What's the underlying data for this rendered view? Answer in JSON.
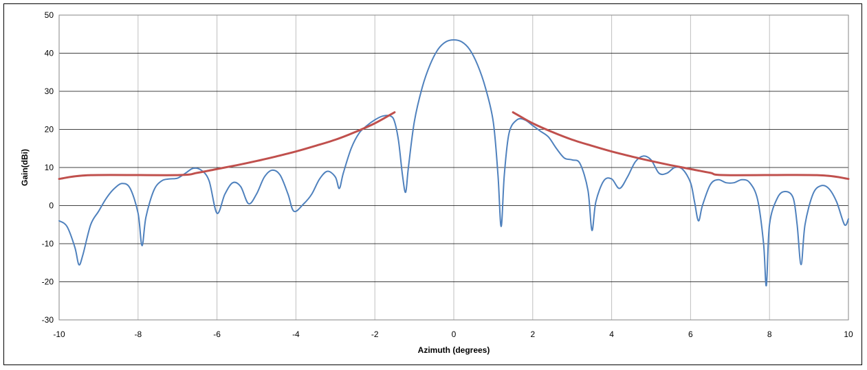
{
  "chart_data": {
    "type": "line",
    "title": "",
    "xlabel": "Azimuth (degrees)",
    "ylabel": "Gain(dBi)",
    "xlim": [
      -10,
      10
    ],
    "ylim": [
      -30,
      50
    ],
    "x_ticks": [
      -10,
      -8,
      -6,
      -4,
      -2,
      0,
      2,
      4,
      6,
      8,
      10
    ],
    "y_ticks": [
      -30,
      -20,
      -10,
      0,
      10,
      20,
      30,
      40,
      50
    ],
    "grid": true,
    "legend": "none",
    "series": [
      {
        "color": "#4F81BD",
        "points": [
          [
            -10,
            -4
          ],
          [
            -9.8,
            -5.5
          ],
          [
            -9.6,
            -11
          ],
          [
            -9.5,
            -15.5
          ],
          [
            -9.4,
            -13
          ],
          [
            -9.2,
            -5
          ],
          [
            -9.0,
            -1.5
          ],
          [
            -8.8,
            2
          ],
          [
            -8.6,
            4.5
          ],
          [
            -8.4,
            5.8
          ],
          [
            -8.2,
            4.5
          ],
          [
            -8.0,
            -2
          ],
          [
            -7.9,
            -10.5
          ],
          [
            -7.8,
            -3
          ],
          [
            -7.6,
            4
          ],
          [
            -7.4,
            6.5
          ],
          [
            -7.2,
            7
          ],
          [
            -7.0,
            7.2
          ],
          [
            -6.8,
            8.5
          ],
          [
            -6.6,
            9.8
          ],
          [
            -6.4,
            9.3
          ],
          [
            -6.2,
            6.5
          ],
          [
            -6.0,
            -2
          ],
          [
            -5.8,
            3
          ],
          [
            -5.6,
            6
          ],
          [
            -5.4,
            5
          ],
          [
            -5.2,
            0.5
          ],
          [
            -5.0,
            3
          ],
          [
            -4.8,
            7.5
          ],
          [
            -4.6,
            9.3
          ],
          [
            -4.4,
            8
          ],
          [
            -4.2,
            3
          ],
          [
            -4.05,
            -1.5
          ],
          [
            -3.8,
            0.5
          ],
          [
            -3.6,
            3
          ],
          [
            -3.4,
            7
          ],
          [
            -3.2,
            9
          ],
          [
            -3.0,
            7.5
          ],
          [
            -2.9,
            4.5
          ],
          [
            -2.8,
            8.5
          ],
          [
            -2.6,
            15
          ],
          [
            -2.4,
            19
          ],
          [
            -2.2,
            21
          ],
          [
            -2.0,
            22.5
          ],
          [
            -1.8,
            23.5
          ],
          [
            -1.6,
            23.5
          ],
          [
            -1.5,
            22
          ],
          [
            -1.4,
            17
          ],
          [
            -1.3,
            8
          ],
          [
            -1.22,
            3.5
          ],
          [
            -1.15,
            10
          ],
          [
            -1.0,
            22
          ],
          [
            -0.8,
            31
          ],
          [
            -0.6,
            37
          ],
          [
            -0.4,
            41
          ],
          [
            -0.2,
            43
          ],
          [
            0,
            43.5
          ],
          [
            0.2,
            43
          ],
          [
            0.4,
            41
          ],
          [
            0.6,
            37
          ],
          [
            0.8,
            31
          ],
          [
            1.0,
            22
          ],
          [
            1.12,
            8
          ],
          [
            1.2,
            -5.5
          ],
          [
            1.28,
            8
          ],
          [
            1.4,
            19
          ],
          [
            1.6,
            22.5
          ],
          [
            1.8,
            22.5
          ],
          [
            2.0,
            21
          ],
          [
            2.2,
            19.5
          ],
          [
            2.4,
            18
          ],
          [
            2.6,
            15
          ],
          [
            2.8,
            12.5
          ],
          [
            3.0,
            12
          ],
          [
            3.2,
            11
          ],
          [
            3.4,
            4
          ],
          [
            3.5,
            -6.5
          ],
          [
            3.6,
            1
          ],
          [
            3.8,
            6.5
          ],
          [
            4.0,
            7
          ],
          [
            4.2,
            4.5
          ],
          [
            4.4,
            7.5
          ],
          [
            4.6,
            11.5
          ],
          [
            4.8,
            13
          ],
          [
            5.0,
            12
          ],
          [
            5.2,
            8.5
          ],
          [
            5.4,
            8.5
          ],
          [
            5.6,
            10
          ],
          [
            5.8,
            9.5
          ],
          [
            6.0,
            6
          ],
          [
            6.1,
            1
          ],
          [
            6.2,
            -4
          ],
          [
            6.3,
            0
          ],
          [
            6.5,
            5.5
          ],
          [
            6.7,
            6.8
          ],
          [
            6.9,
            6
          ],
          [
            7.1,
            6
          ],
          [
            7.3,
            6.8
          ],
          [
            7.5,
            6
          ],
          [
            7.7,
            1.5
          ],
          [
            7.85,
            -10
          ],
          [
            7.92,
            -21
          ],
          [
            8.0,
            -5
          ],
          [
            8.2,
            2
          ],
          [
            8.4,
            3.7
          ],
          [
            8.6,
            2
          ],
          [
            8.7,
            -5
          ],
          [
            8.8,
            -15.5
          ],
          [
            8.9,
            -5
          ],
          [
            9.1,
            3
          ],
          [
            9.3,
            5.2
          ],
          [
            9.5,
            4.5
          ],
          [
            9.7,
            1
          ],
          [
            9.9,
            -5
          ],
          [
            10,
            -3.5
          ]
        ]
      },
      {
        "color": "#C0504D",
        "points": [
          [
            -10,
            7
          ],
          [
            -9.2,
            8
          ],
          [
            -7,
            8
          ],
          [
            -6.5,
            8.6
          ],
          [
            -6,
            9.6
          ],
          [
            -5.5,
            10.6
          ],
          [
            -5,
            11.7
          ],
          [
            -4.5,
            12.9
          ],
          [
            -4,
            14.2
          ],
          [
            -3.5,
            15.7
          ],
          [
            -3,
            17.3
          ],
          [
            -2.5,
            19.3
          ],
          [
            -2,
            21.6
          ],
          [
            -1.5,
            24.5
          ]
        ]
      },
      {
        "color": "#C0504D",
        "points": [
          [
            1.5,
            24.5
          ],
          [
            2,
            21.6
          ],
          [
            2.5,
            19.3
          ],
          [
            3,
            17.3
          ],
          [
            3.5,
            15.7
          ],
          [
            4,
            14.2
          ],
          [
            4.5,
            12.9
          ],
          [
            5,
            11.7
          ],
          [
            5.5,
            10.6
          ],
          [
            6,
            9.6
          ],
          [
            6.5,
            8.6
          ],
          [
            6.9,
            8
          ],
          [
            9.2,
            8
          ],
          [
            10,
            7
          ]
        ]
      }
    ]
  }
}
